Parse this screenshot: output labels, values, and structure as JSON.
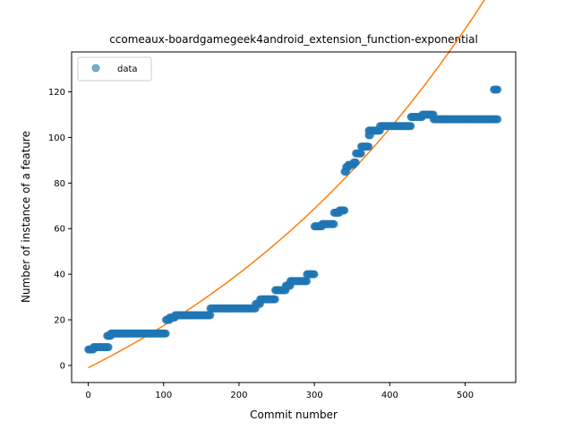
{
  "chart_data": {
    "type": "scatter",
    "title": "ccomeaux-boardgamegeek4android_extension_function-exponential",
    "xlabel": "Commit number",
    "ylabel": "Number of instance of a feature",
    "xlim": [
      -22,
      567
    ],
    "ylim": [
      -7.5,
      137.5
    ],
    "xticks": [
      0,
      100,
      200,
      300,
      400,
      500
    ],
    "yticks": [
      0,
      20,
      40,
      60,
      80,
      100,
      120
    ],
    "grid": false,
    "legend": {
      "position": "top-left",
      "entries": [
        "data"
      ]
    },
    "colors": {
      "data": "#1f77b4",
      "fit": "#ff7f0e"
    },
    "series": [
      {
        "name": "data",
        "kind": "scatter",
        "segments": [
          {
            "x_start": 0,
            "x_end": 7,
            "y": 7
          },
          {
            "x_start": 7,
            "x_end": 27,
            "y": 8
          },
          {
            "x_start": 25,
            "x_end": 30,
            "y": 13
          },
          {
            "x_start": 30,
            "x_end": 103,
            "y": 14
          },
          {
            "x_start": 103,
            "x_end": 108,
            "y": 20
          },
          {
            "x_start": 108,
            "x_end": 115,
            "y": 21
          },
          {
            "x_start": 115,
            "x_end": 162,
            "y": 22
          },
          {
            "x_start": 162,
            "x_end": 222,
            "y": 25
          },
          {
            "x_start": 222,
            "x_end": 228,
            "y": 27
          },
          {
            "x_start": 228,
            "x_end": 248,
            "y": 29
          },
          {
            "x_start": 248,
            "x_end": 262,
            "y": 33
          },
          {
            "x_start": 262,
            "x_end": 268,
            "y": 35
          },
          {
            "x_start": 268,
            "x_end": 290,
            "y": 37
          },
          {
            "x_start": 290,
            "x_end": 300,
            "y": 40
          },
          {
            "x_start": 300,
            "x_end": 310,
            "y": 61
          },
          {
            "x_start": 310,
            "x_end": 326,
            "y": 62
          },
          {
            "x_start": 326,
            "x_end": 333,
            "y": 67
          },
          {
            "x_start": 333,
            "x_end": 340,
            "y": 68
          },
          {
            "x_start": 340,
            "x_end": 342,
            "y": 85
          },
          {
            "x_start": 342,
            "x_end": 345,
            "y": 87
          },
          {
            "x_start": 345,
            "x_end": 352,
            "y": 88
          },
          {
            "x_start": 352,
            "x_end": 355,
            "y": 89
          },
          {
            "x_start": 355,
            "x_end": 362,
            "y": 93
          },
          {
            "x_start": 362,
            "x_end": 372,
            "y": 96
          },
          {
            "x_start": 372,
            "x_end": 374,
            "y": 101
          },
          {
            "x_start": 372,
            "x_end": 387,
            "y": 103
          },
          {
            "x_start": 387,
            "x_end": 428,
            "y": 105
          },
          {
            "x_start": 428,
            "x_end": 443,
            "y": 109
          },
          {
            "x_start": 443,
            "x_end": 458,
            "y": 110
          },
          {
            "x_start": 458,
            "x_end": 470,
            "y": 108
          },
          {
            "x_start": 470,
            "x_end": 543,
            "y": 108
          },
          {
            "x_start": 538,
            "x_end": 543,
            "y": 121
          }
        ]
      },
      {
        "name": "",
        "kind": "line",
        "formula": "y = a*exp(b*x) + c",
        "params": {
          "a": 77.0,
          "b": 0.00215,
          "c": -78.0
        },
        "x_range": [
          0,
          543
        ]
      }
    ]
  }
}
